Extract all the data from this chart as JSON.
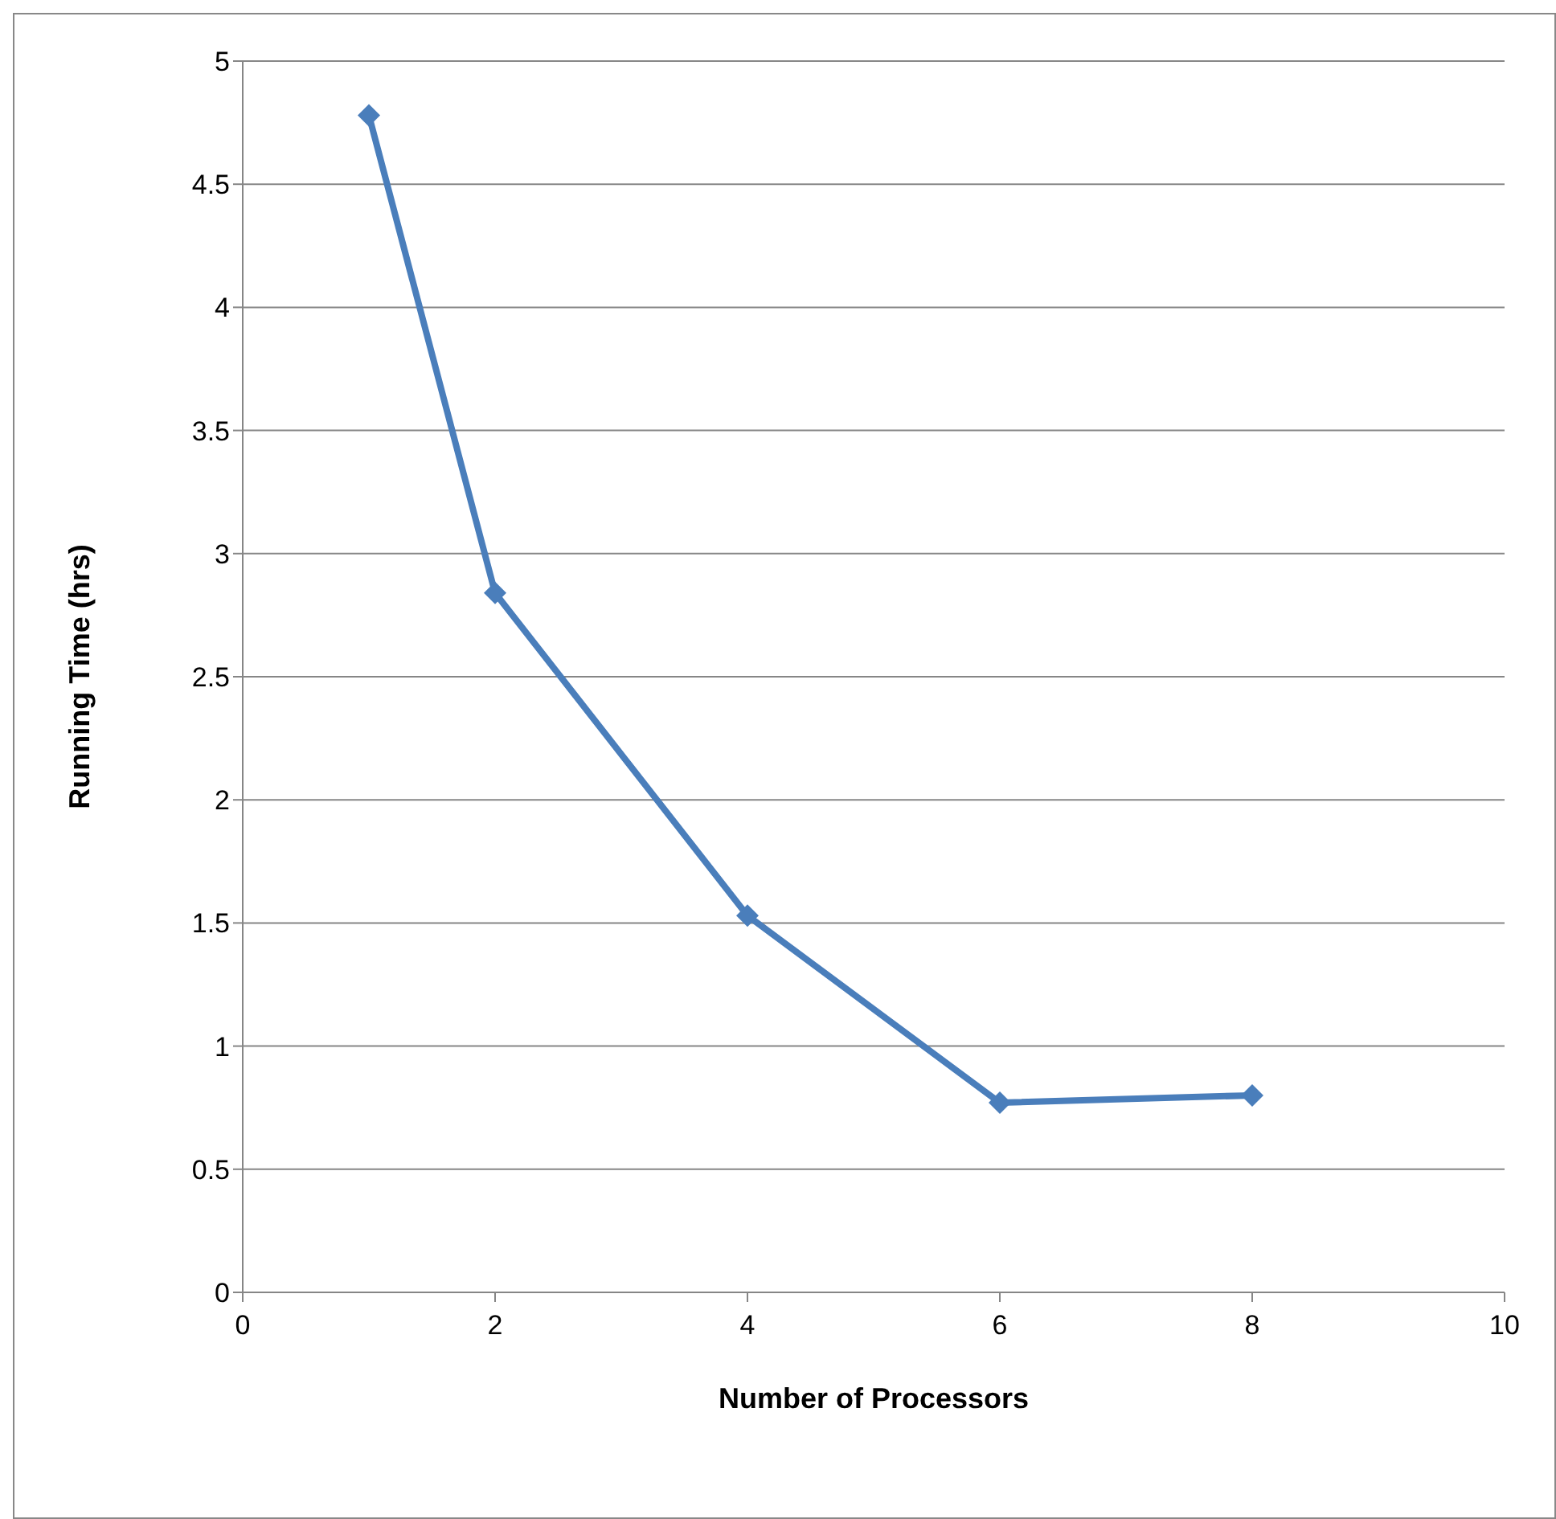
{
  "chart_data": {
    "type": "line",
    "xlabel": "Number of Processors",
    "ylabel": "Running Time (hrs)",
    "x": [
      1,
      2,
      4,
      6,
      8
    ],
    "series": [
      {
        "color": "#4a7ebb",
        "values": [
          4.78,
          2.84,
          1.53,
          0.77,
          0.8
        ]
      }
    ],
    "xlim": [
      0,
      10
    ],
    "ylim": [
      0,
      5
    ],
    "xticks": [
      0,
      2,
      4,
      6,
      8,
      10
    ],
    "yticks": [
      0,
      0.5,
      1,
      1.5,
      2,
      2.5,
      3,
      3.5,
      4,
      4.5,
      5
    ],
    "grid": "y",
    "marker": "diamond"
  }
}
